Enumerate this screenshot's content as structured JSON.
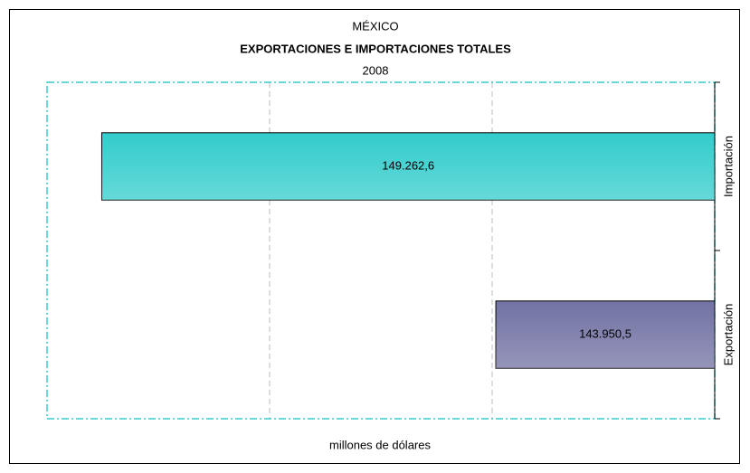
{
  "chart_data": {
    "type": "bar",
    "orientation": "horizontal",
    "title": "MÉXICO",
    "subtitle": "EXPORTACIONES E IMPORTACIONES TOTALES",
    "year": "2008",
    "x_label": "millones de dólares",
    "categories": [
      "Importación",
      "Exportación"
    ],
    "values": [
      149262.6,
      143950.5
    ],
    "value_labels": [
      "149.262,6",
      "143.950,5"
    ],
    "colors": [
      "#33cccc",
      "#7272a4"
    ],
    "xlim": [
      141000,
      150000
    ],
    "x_reversed": true,
    "xticks": [
      141000,
      144000,
      147000,
      150000
    ],
    "grid": true
  }
}
